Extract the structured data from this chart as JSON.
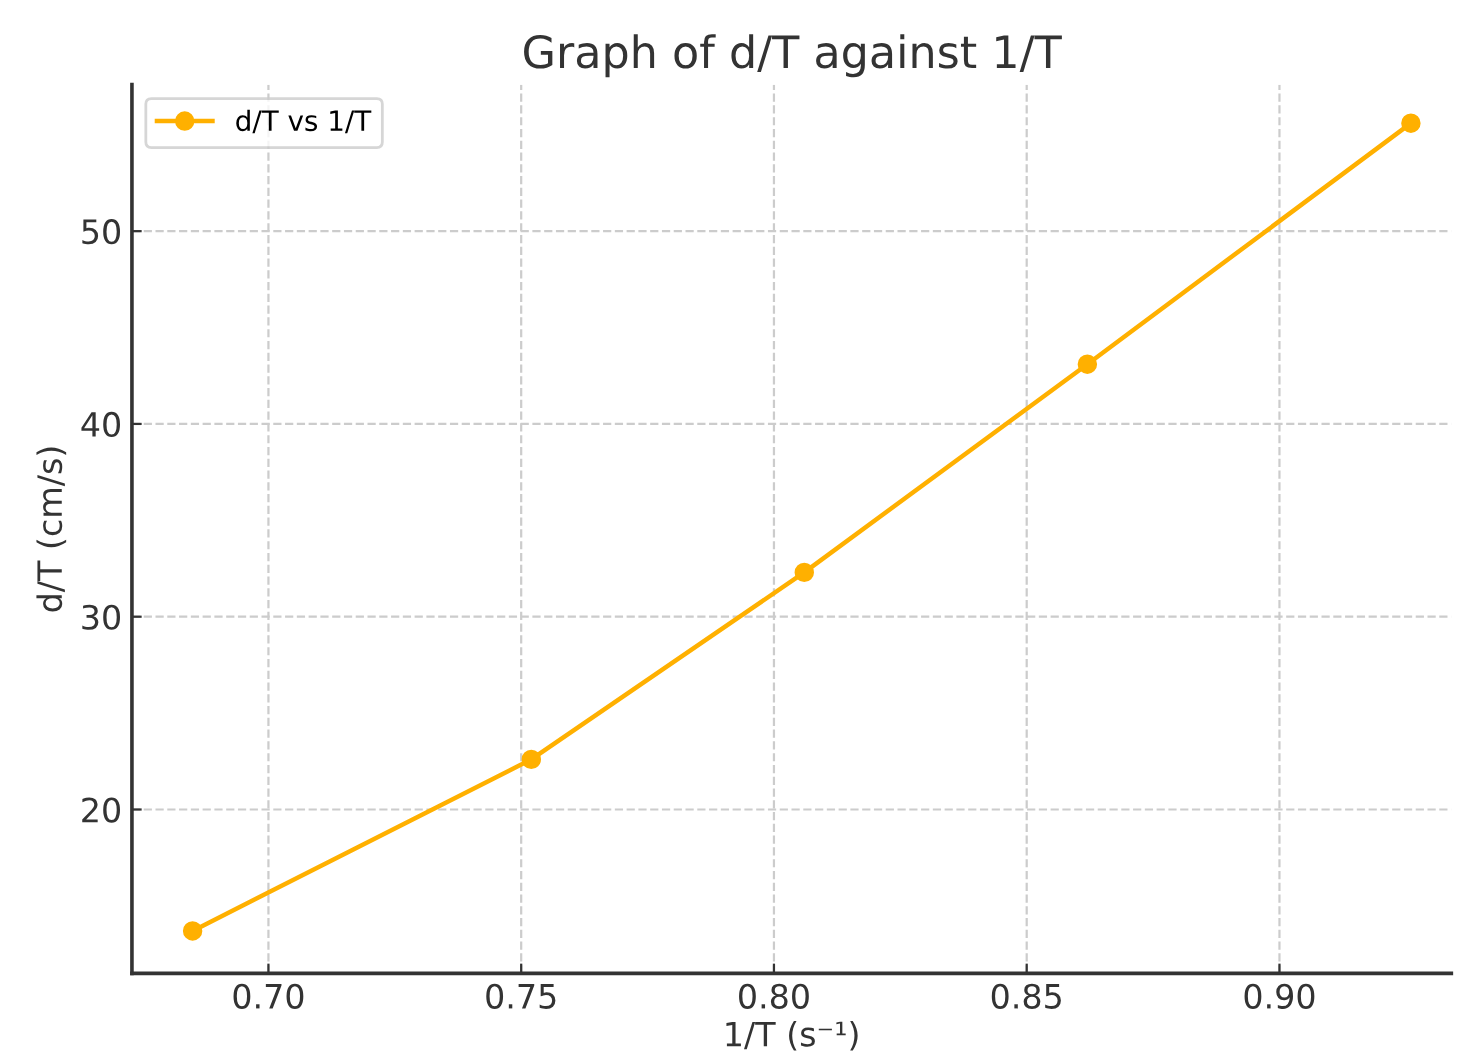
{
  "chart_data": {
    "type": "line",
    "title": "Graph of d/T against 1/T",
    "xlabel": "1/T (s⁻¹)",
    "ylabel": "d/T (cm/s)",
    "x": [
      0.685,
      0.752,
      0.806,
      0.862,
      0.926
    ],
    "series": [
      {
        "name": "d/T vs 1/T",
        "color": "#ffb000",
        "values": [
          13.7,
          22.6,
          32.3,
          43.1,
          55.6
        ]
      }
    ],
    "xlim": [
      0.673,
      0.934
    ],
    "ylim": [
      11.5,
      57.6
    ],
    "xticks": [
      {
        "value": 0.7,
        "label": "0.70"
      },
      0.75,
      {
        "value": 0.8,
        "label": "0.80"
      },
      0.85,
      {
        "value": 0.9,
        "label": "0.90"
      }
    ],
    "yticks": [
      20,
      30,
      40,
      50
    ],
    "grid": true,
    "legend": "top left",
    "marker": "circle",
    "line_style": "solid"
  }
}
